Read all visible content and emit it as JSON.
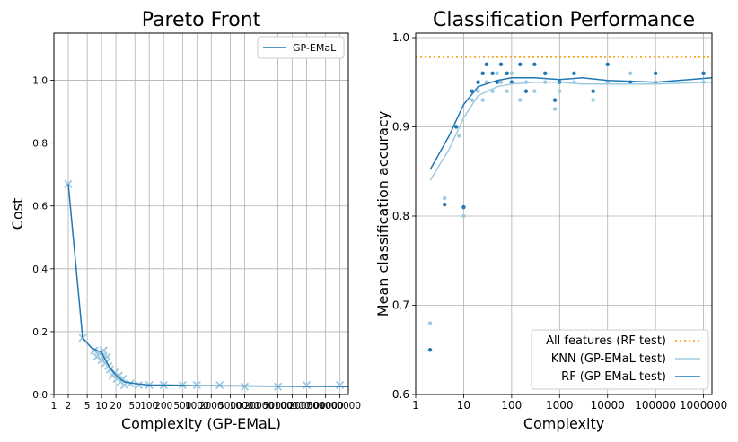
{
  "chart_data": [
    {
      "type": "line",
      "title": "Pareto Front",
      "xlabel": "Complexity (GP-EMaL)",
      "ylabel": "Cost",
      "xscale": "log",
      "xlim": [
        1,
        1500000
      ],
      "ylim": [
        0,
        1.15
      ],
      "xtick_labels": [
        "1",
        "2",
        "5",
        "10",
        "20",
        "50",
        "100",
        "200",
        "500",
        "1000",
        "2000",
        "5000",
        "10000",
        "20000",
        "50000",
        "100000",
        "200000",
        "500000",
        "1000000"
      ],
      "ytick_labels": [
        "0.0",
        "0.2",
        "0.4",
        "0.6",
        "0.8",
        "1.0"
      ],
      "grid": true,
      "legend": {
        "placement": "top-right",
        "entries": [
          "GP-EMaL"
        ]
      },
      "series": [
        {
          "name": "GP-EMaL",
          "color": "#1f77b4",
          "x": [
            2,
            4,
            6,
            8,
            10,
            12,
            15,
            18,
            22,
            30,
            50,
            100,
            300,
            1000,
            10000,
            100000,
            1500000
          ],
          "y": [
            0.67,
            0.18,
            0.15,
            0.14,
            0.135,
            0.11,
            0.085,
            0.07,
            0.055,
            0.04,
            0.035,
            0.03,
            0.03,
            0.028,
            0.027,
            0.026,
            0.025
          ]
        }
      ],
      "scatter": {
        "color": "#9ecae1",
        "marker": "x",
        "x": [
          2,
          4,
          7,
          8,
          9,
          10,
          11,
          12,
          13,
          14,
          15,
          17,
          19,
          21,
          23,
          25,
          28,
          30,
          40,
          60,
          100,
          200,
          500,
          1000,
          3000,
          10000,
          50000,
          200000,
          1000000
        ],
        "y": [
          0.67,
          0.18,
          0.14,
          0.12,
          0.13,
          0.11,
          0.14,
          0.1,
          0.12,
          0.09,
          0.08,
          0.06,
          0.07,
          0.05,
          0.06,
          0.04,
          0.05,
          0.03,
          0.035,
          0.03,
          0.03,
          0.03,
          0.03,
          0.03,
          0.03,
          0.025,
          0.025,
          0.03,
          0.03
        ]
      }
    },
    {
      "type": "line",
      "title": "Classification Performance",
      "xlabel": "Complexity",
      "ylabel": "Mean classification accuracy",
      "xscale": "log",
      "xlim": [
        1,
        1500000
      ],
      "ylim": [
        0.6,
        1.005
      ],
      "xtick_labels": [
        "1",
        "10",
        "100",
        "1000",
        "10000",
        "100000",
        "1000000"
      ],
      "ytick_labels": [
        "0.6",
        "0.7",
        "0.8",
        "0.9",
        "1.0"
      ],
      "grid": true,
      "legend": {
        "placement": "bottom-right",
        "entries": [
          "All features (RF test)",
          "KNN (GP-EMaL test)",
          "RF (GP-EMaL test)"
        ]
      },
      "hline": {
        "name": "All features (RF test)",
        "y": 0.978,
        "color": "#ff9900"
      },
      "series": [
        {
          "name": "KNN (GP-EMaL test)",
          "color": "#9ecae1",
          "x": [
            2,
            5,
            10,
            20,
            50,
            100,
            300,
            1000,
            3000,
            10000,
            100000,
            1500000
          ],
          "y": [
            0.84,
            0.875,
            0.91,
            0.935,
            0.945,
            0.948,
            0.95,
            0.95,
            0.948,
            0.948,
            0.948,
            0.95
          ]
        },
        {
          "name": "RF (GP-EMaL test)",
          "color": "#1f77b4",
          "x": [
            2,
            5,
            10,
            20,
            50,
            100,
            300,
            1000,
            3000,
            10000,
            100000,
            1500000
          ],
          "y": [
            0.852,
            0.89,
            0.925,
            0.945,
            0.952,
            0.955,
            0.955,
            0.953,
            0.955,
            0.952,
            0.95,
            0.955
          ]
        }
      ],
      "scatter_series": [
        {
          "name": "KNN (GP-EMaL test)",
          "color": "#9ecae1",
          "x": [
            2,
            4,
            8,
            10,
            15,
            20,
            25,
            30,
            40,
            50,
            60,
            80,
            100,
            150,
            200,
            300,
            500,
            800,
            1000,
            2000,
            5000,
            10000,
            30000,
            100000,
            1000000
          ],
          "y": [
            0.68,
            0.82,
            0.89,
            0.8,
            0.93,
            0.94,
            0.93,
            0.95,
            0.94,
            0.96,
            0.95,
            0.94,
            0.96,
            0.93,
            0.95,
            0.94,
            0.95,
            0.92,
            0.94,
            0.95,
            0.93,
            0.95,
            0.96,
            0.95,
            0.95
          ]
        },
        {
          "name": "RF (GP-EMaL test)",
          "color": "#1f77b4",
          "x": [
            2,
            4,
            7,
            10,
            15,
            20,
            25,
            30,
            40,
            50,
            60,
            80,
            100,
            150,
            200,
            300,
            500,
            800,
            1000,
            2000,
            5000,
            10000,
            30000,
            100000,
            1000000
          ],
          "y": [
            0.65,
            0.813,
            0.9,
            0.81,
            0.94,
            0.95,
            0.96,
            0.97,
            0.96,
            0.95,
            0.97,
            0.96,
            0.95,
            0.97,
            0.94,
            0.97,
            0.96,
            0.93,
            0.95,
            0.96,
            0.94,
            0.97,
            0.95,
            0.96,
            0.96
          ]
        }
      ]
    }
  ]
}
